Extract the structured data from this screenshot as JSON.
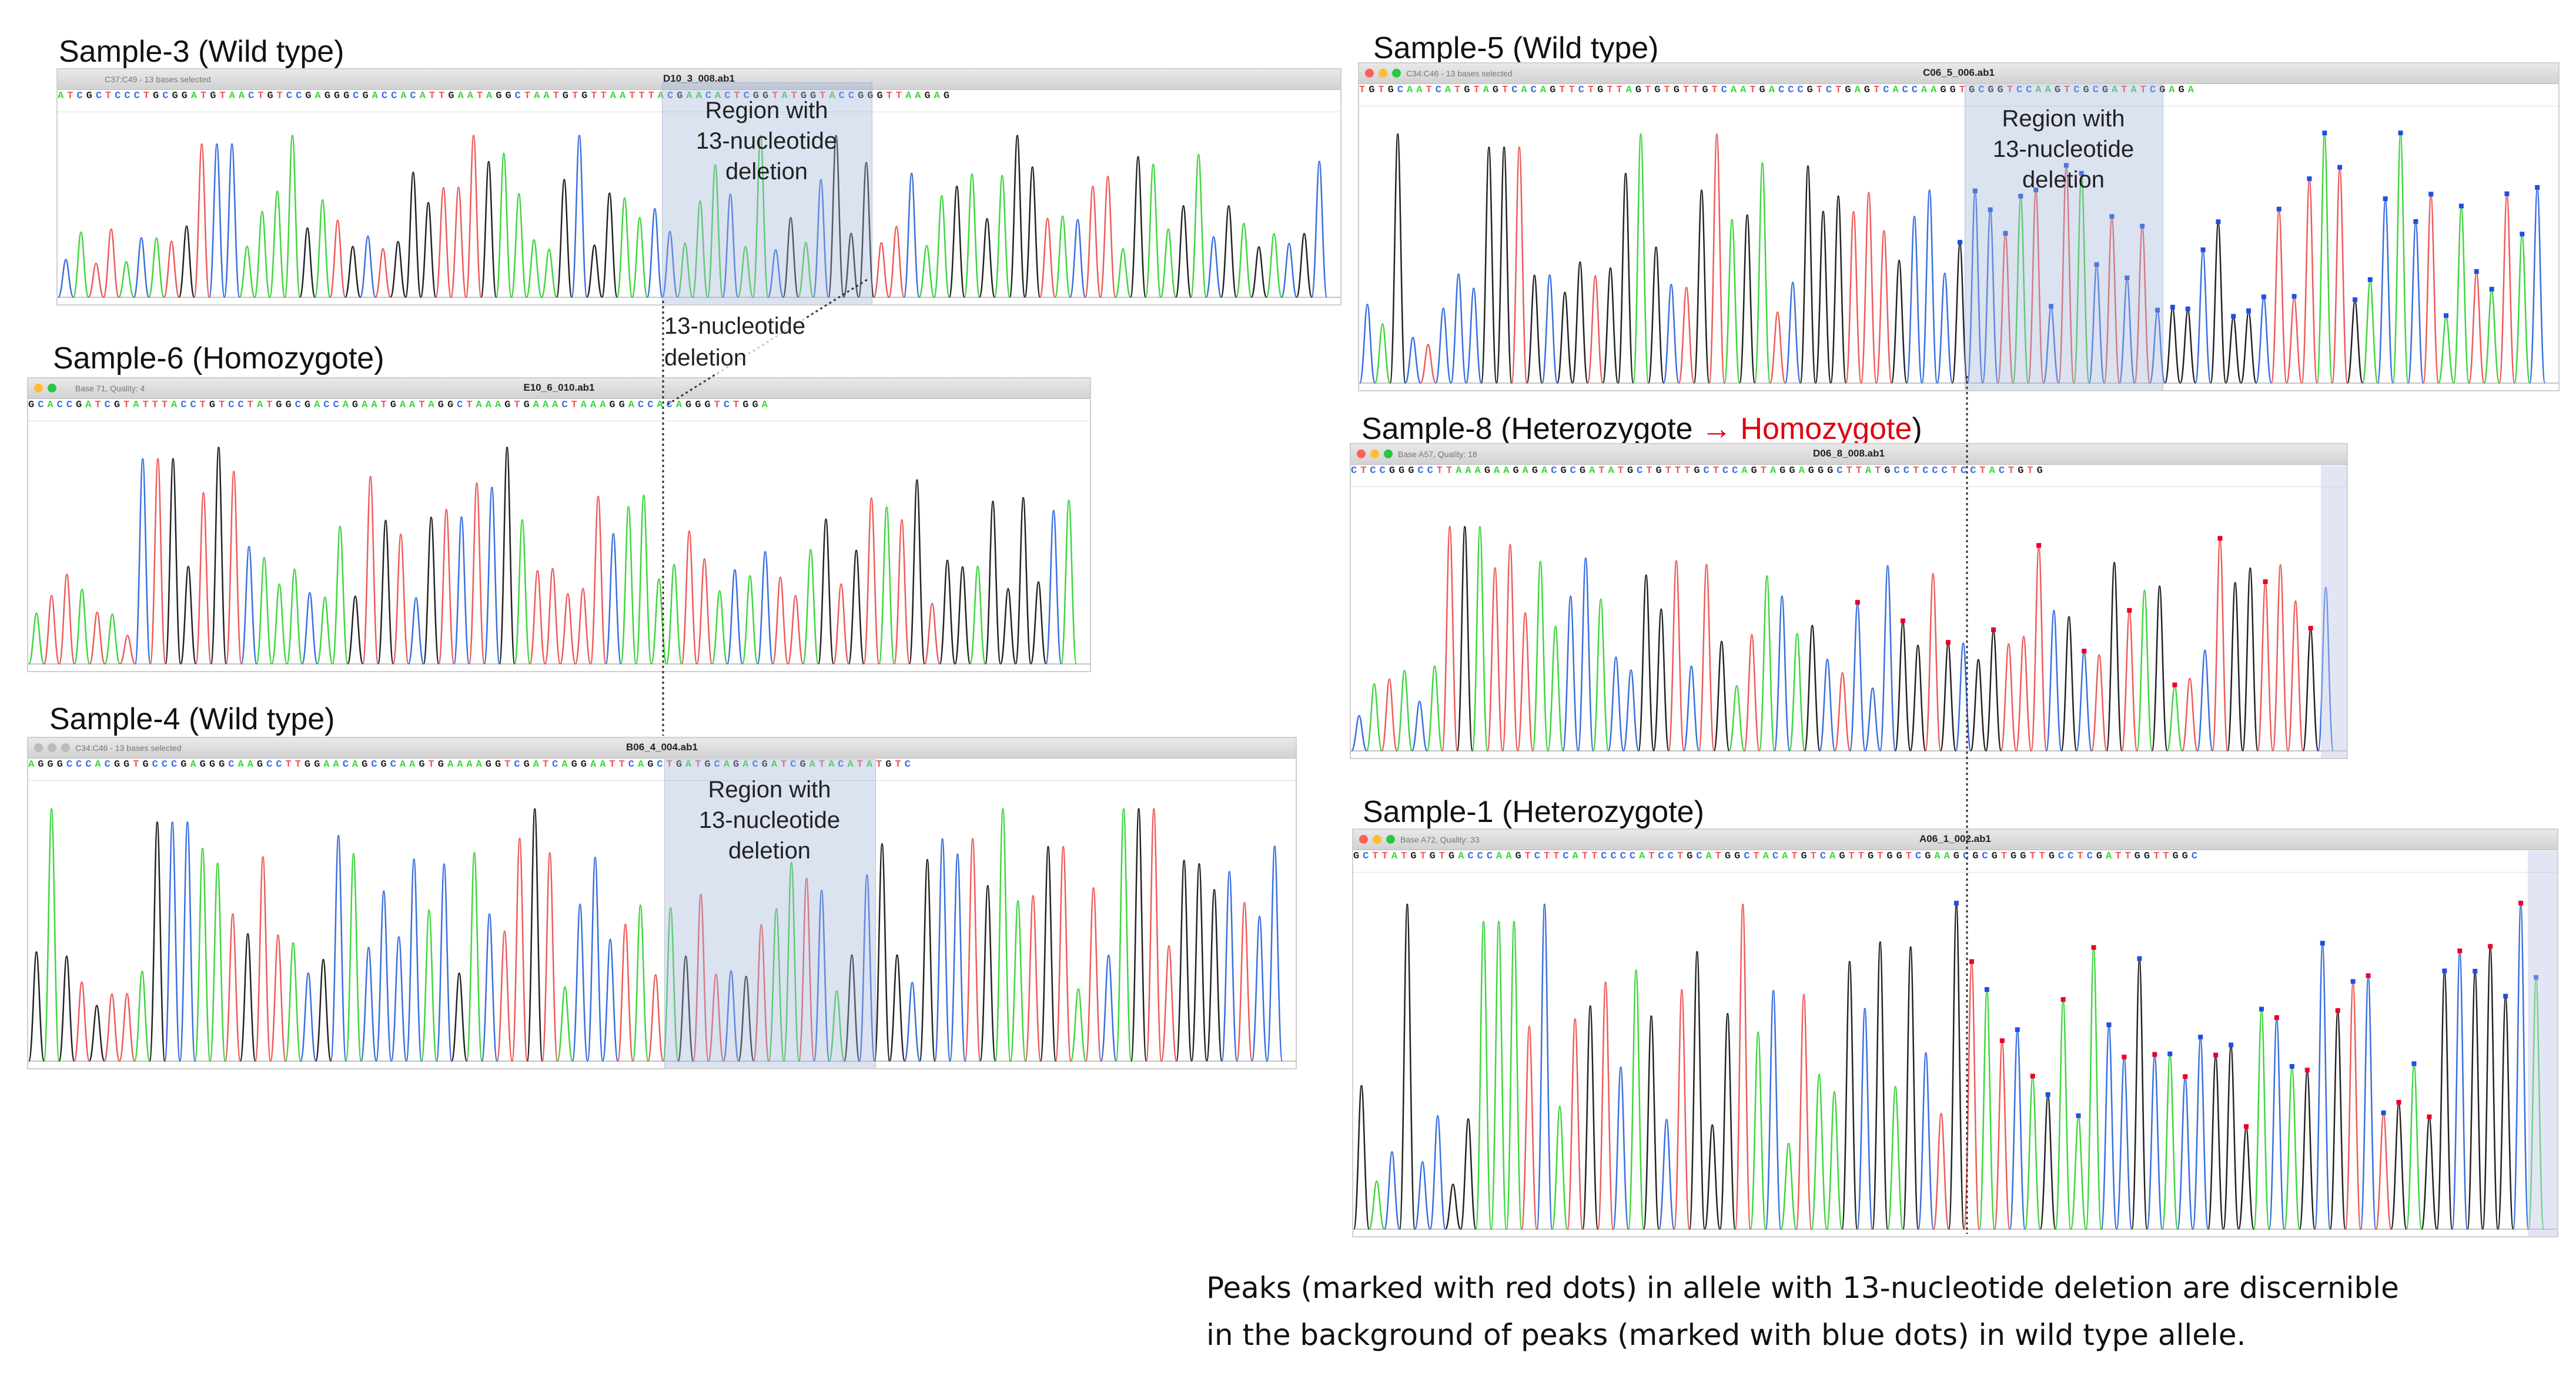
{
  "panels": [
    {
      "key": "s3",
      "title": "Sample-3 (Wild type)",
      "title_hl": "",
      "file": "D10_3_008.ab1",
      "status": "C37:C49 - 13 bases selected",
      "dots": "none",
      "region": true,
      "markers": "",
      "seed": 3
    },
    {
      "key": "s6",
      "title": "Sample-6 (Homozygote)",
      "title_hl": "",
      "file": "E10_6_010.ab1",
      "status": "Base 71, Quality: 4",
      "dots": "pair",
      "region": false,
      "markers": "",
      "seed": 6
    },
    {
      "key": "s4",
      "title": "Sample-4 (Wild type)",
      "title_hl": "",
      "file": "B06_4_004.ab1",
      "status": "C34:C46 - 13 bases selected",
      "dots": "grey",
      "region": true,
      "markers": "",
      "seed": 4
    },
    {
      "key": "s5",
      "title": "Sample-5 (Wild type)",
      "title_hl": "",
      "file": "C06_5_006.ab1",
      "status": "C34:C46 - 13 bases selected",
      "dots": "mac",
      "region": true,
      "markers": "blue",
      "seed": 5
    },
    {
      "key": "s8",
      "title": "Sample-8 (Heterozygote ",
      "title_hl": "→ Homozygote",
      "title_end": ")",
      "file": "D06_8_008.ab1",
      "status": "Base A57, Quality: 18",
      "dots": "mac",
      "region": false,
      "markers": "red",
      "seed": 8
    },
    {
      "key": "s1",
      "title": "Sample-1 (Heterozygote)",
      "title_hl": "",
      "file": "A06_1_002.ab1",
      "status": "Base A72, Quality: 33",
      "dots": "mac",
      "region": false,
      "markers": "both",
      "seed": 1
    }
  ],
  "region_label": [
    "Region with",
    "13-nucleotide",
    "deletion"
  ],
  "deletion_label": [
    "13-nucleotide",
    "deletion"
  ],
  "caption": {
    "line1": "Peaks (marked with red dots) in allele with 13-nucleotide deletion are discernible",
    "line2": "in the background of peaks (marked with blue dots) in wild type allele."
  },
  "colors": {
    "A": "#3fd63f",
    "C": "#3a6fe0",
    "G": "#222222",
    "T": "#ef5b5b",
    "region": "#a9b8d8",
    "red_dot": "#e8002a",
    "blue_dot": "#1f4fe0"
  }
}
